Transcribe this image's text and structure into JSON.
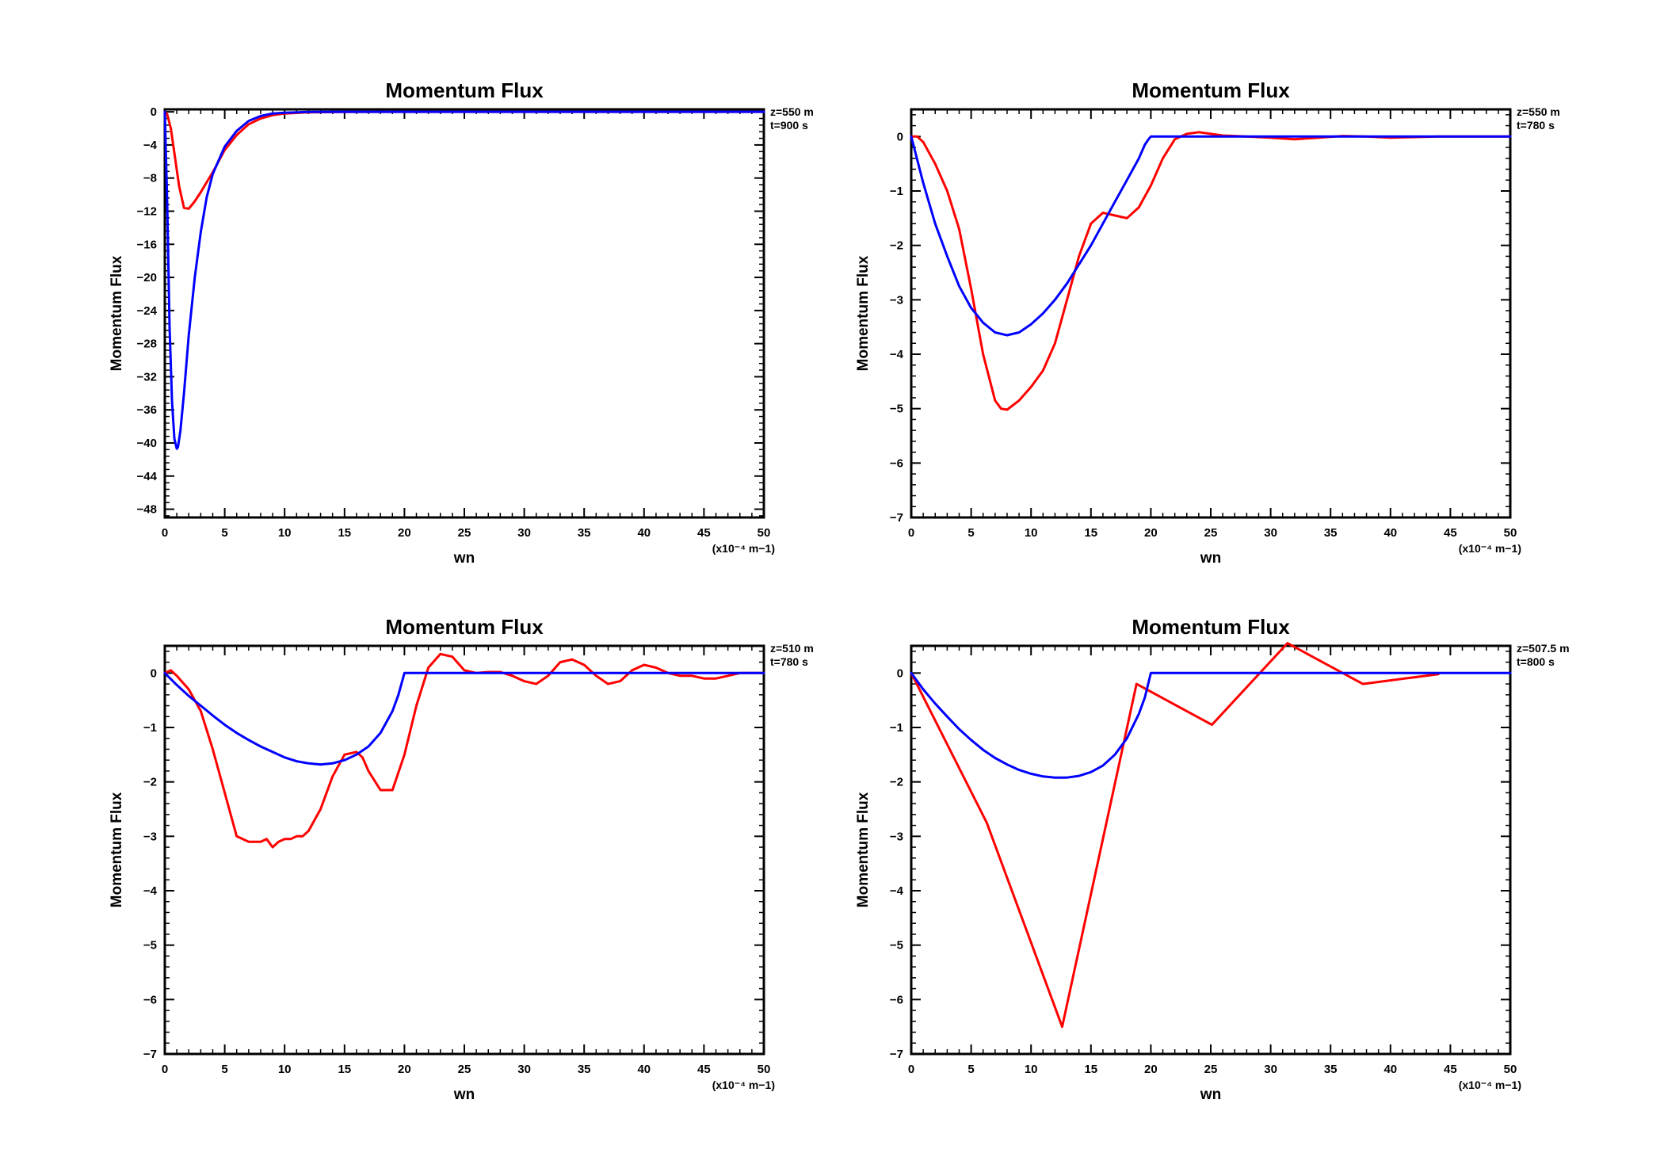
{
  "colors": {
    "model": "#ff0000",
    "theory": "#0000ff",
    "axis": "#000000"
  },
  "chart_data": [
    {
      "type": "line",
      "title": "Momentum Flux",
      "xlabel": "wn",
      "ylabel": "Momentum Flux",
      "x_scale_note": "(x10⁻⁴ m−1)",
      "annotations": [
        "z=550 m",
        "t=900 s"
      ],
      "xlim": [
        0,
        50
      ],
      "ylim": [
        -49,
        0.3
      ],
      "xticks": [
        0,
        5,
        10,
        15,
        20,
        25,
        30,
        35,
        40,
        45,
        50
      ],
      "yticks": [
        0,
        -4,
        -8,
        -12,
        -16,
        -20,
        -24,
        -28,
        -32,
        -36,
        -40,
        -44,
        -48
      ],
      "grid": false,
      "series": [
        {
          "color": "#ff0000",
          "x": [
            0,
            0.2,
            0.5,
            0.8,
            1.2,
            1.6,
            2.0,
            2.5,
            3.0,
            3.5,
            4.0,
            5.0,
            6.0,
            7.0,
            8.0,
            9.0,
            10.0,
            12.0,
            15.0,
            20.0,
            30.0,
            40.0,
            50.0
          ],
          "y": [
            0,
            -0.3,
            -2,
            -5,
            -9,
            -11.6,
            -11.7,
            -10.8,
            -9.7,
            -8.5,
            -7.3,
            -4.6,
            -2.8,
            -1.5,
            -0.8,
            -0.4,
            -0.2,
            -0.05,
            -0.01,
            0,
            0,
            0,
            0
          ]
        },
        {
          "color": "#0000ff",
          "x": [
            0,
            0.2,
            0.4,
            0.6,
            0.8,
            1.0,
            1.1,
            1.3,
            1.6,
            2.0,
            2.5,
            3.0,
            3.5,
            4.0,
            5.0,
            6.0,
            7.0,
            8.0,
            9.0,
            10.0,
            12.0,
            15.0,
            20.0,
            30.0,
            40.0,
            50.0
          ],
          "y": [
            0,
            -11,
            -26,
            -35,
            -39.5,
            -40.7,
            -40.5,
            -38.5,
            -34,
            -27,
            -20,
            -14.5,
            -10.3,
            -7.5,
            -4.2,
            -2.3,
            -1.1,
            -0.5,
            -0.2,
            -0.1,
            -0.02,
            0,
            0,
            0,
            0,
            0
          ]
        }
      ]
    },
    {
      "type": "line",
      "title": "Momentum Flux",
      "xlabel": "wn",
      "ylabel": "Momentum Flux",
      "x_scale_note": "(x10⁻⁴ m−1)",
      "annotations": [
        "z=550 m",
        "t=780 s"
      ],
      "xlim": [
        0,
        50
      ],
      "ylim": [
        -7,
        0.5
      ],
      "xticks": [
        0,
        5,
        10,
        15,
        20,
        25,
        30,
        35,
        40,
        45,
        50
      ],
      "yticks": [
        0,
        -1,
        -2,
        -3,
        -4,
        -5,
        -6,
        -7
      ],
      "grid": false,
      "series": [
        {
          "color": "#ff0000",
          "x": [
            0,
            0.5,
            1,
            2,
            3,
            4,
            5,
            6,
            7,
            7.5,
            8,
            9,
            10,
            11,
            12,
            13,
            14,
            15,
            16,
            17,
            18,
            19,
            20,
            21,
            22,
            23,
            24,
            25,
            26,
            28,
            30,
            32,
            34,
            36,
            38,
            40,
            42,
            44,
            46,
            48,
            50
          ],
          "y": [
            0,
            0,
            -0.1,
            -0.5,
            -1.0,
            -1.7,
            -2.8,
            -4.0,
            -4.85,
            -5.0,
            -5.02,
            -4.85,
            -4.6,
            -4.3,
            -3.8,
            -3.0,
            -2.2,
            -1.6,
            -1.4,
            -1.45,
            -1.5,
            -1.3,
            -0.9,
            -0.4,
            -0.05,
            0.05,
            0.08,
            0.05,
            0.02,
            0.0,
            -0.02,
            -0.05,
            -0.02,
            0.01,
            0.0,
            -0.02,
            -0.01,
            0.0,
            0.0,
            0.0,
            0.0
          ]
        },
        {
          "color": "#0000ff",
          "x": [
            0,
            1,
            2,
            3,
            4,
            5,
            6,
            7,
            8,
            9,
            10,
            11,
            12,
            13,
            14,
            15,
            16,
            17,
            18,
            19,
            19.5,
            19.8,
            20,
            21,
            25,
            30,
            35,
            40,
            45,
            50
          ],
          "y": [
            0,
            -0.85,
            -1.6,
            -2.2,
            -2.75,
            -3.15,
            -3.42,
            -3.6,
            -3.65,
            -3.6,
            -3.45,
            -3.25,
            -3.0,
            -2.7,
            -2.35,
            -2.0,
            -1.6,
            -1.2,
            -0.8,
            -0.4,
            -0.15,
            -0.05,
            0,
            0,
            0,
            0,
            0,
            0,
            0,
            0
          ]
        }
      ]
    },
    {
      "type": "line",
      "title": "Momentum Flux",
      "xlabel": "wn",
      "ylabel": "Momentum Flux",
      "x_scale_note": "(x10⁻⁴ m−1)",
      "annotations": [
        "z=510 m",
        "t=780 s"
      ],
      "xlim": [
        0,
        50
      ],
      "ylim": [
        -7,
        0.5
      ],
      "xticks": [
        0,
        5,
        10,
        15,
        20,
        25,
        30,
        35,
        40,
        45,
        50
      ],
      "yticks": [
        0,
        -1,
        -2,
        -3,
        -4,
        -5,
        -6,
        -7
      ],
      "grid": false,
      "series": [
        {
          "color": "#ff0000",
          "x": [
            0,
            0.5,
            1,
            2,
            3,
            4,
            5,
            6,
            7,
            8,
            8.5,
            9,
            9.5,
            10,
            10.5,
            11,
            11.5,
            12,
            13,
            14,
            15,
            16,
            16.5,
            17,
            18,
            19,
            20,
            21,
            22,
            23,
            24,
            25,
            26,
            27,
            28,
            29,
            30,
            31,
            32,
            33,
            34,
            35,
            36,
            37,
            38,
            39,
            40,
            41,
            42,
            43,
            44,
            45,
            46,
            47,
            48,
            49,
            50
          ],
          "y": [
            0,
            0.05,
            -0.05,
            -0.3,
            -0.7,
            -1.4,
            -2.2,
            -3.0,
            -3.1,
            -3.1,
            -3.05,
            -3.2,
            -3.1,
            -3.05,
            -3.05,
            -3.0,
            -3.0,
            -2.9,
            -2.5,
            -1.9,
            -1.5,
            -1.45,
            -1.55,
            -1.8,
            -2.15,
            -2.15,
            -1.5,
            -0.6,
            0.1,
            0.35,
            0.3,
            0.05,
            0.0,
            0.02,
            0.02,
            -0.05,
            -0.15,
            -0.2,
            -0.05,
            0.2,
            0.25,
            0.15,
            -0.05,
            -0.2,
            -0.15,
            0.05,
            0.15,
            0.1,
            0.0,
            -0.05,
            -0.05,
            -0.1,
            -0.1,
            -0.05,
            0.0,
            0.0,
            0.0
          ]
        },
        {
          "color": "#0000ff",
          "x": [
            0,
            1,
            2,
            3,
            4,
            5,
            6,
            7,
            8,
            9,
            10,
            11,
            12,
            13,
            14,
            15,
            16,
            17,
            18,
            19,
            19.5,
            20,
            21,
            25,
            30,
            35,
            40,
            45,
            50
          ],
          "y": [
            0,
            -0.22,
            -0.42,
            -0.6,
            -0.78,
            -0.95,
            -1.1,
            -1.23,
            -1.35,
            -1.45,
            -1.55,
            -1.62,
            -1.66,
            -1.68,
            -1.66,
            -1.6,
            -1.5,
            -1.35,
            -1.1,
            -0.7,
            -0.4,
            0,
            0,
            0,
            0,
            0,
            0,
            0,
            0
          ]
        }
      ]
    },
    {
      "type": "line",
      "title": "Momentum Flux",
      "xlabel": "wn",
      "ylabel": "Momentum Flux",
      "x_scale_note": "(x10⁻⁴ m−1)",
      "annotations": [
        "z=507.5 m",
        "t=800 s"
      ],
      "xlim": [
        0,
        50
      ],
      "ylim": [
        -7,
        0.5
      ],
      "xticks": [
        0,
        5,
        10,
        15,
        20,
        25,
        30,
        35,
        40,
        45,
        50
      ],
      "yticks": [
        0,
        -1,
        -2,
        -3,
        -4,
        -5,
        -6,
        -7
      ],
      "grid": false,
      "series": [
        {
          "color": "#ff0000",
          "x": [
            0,
            6.3,
            12.6,
            18.8,
            25.1,
            31.4,
            37.7,
            44.0
          ],
          "y": [
            0,
            -2.75,
            -6.5,
            -0.2,
            -0.95,
            0.55,
            -0.2,
            -0.02
          ]
        },
        {
          "color": "#0000ff",
          "x": [
            0,
            1,
            2,
            3,
            4,
            5,
            6,
            7,
            8,
            9,
            10,
            11,
            12,
            13,
            14,
            15,
            16,
            17,
            18,
            19,
            19.5,
            20,
            21,
            25,
            30,
            35,
            40,
            45,
            50
          ],
          "y": [
            0,
            -0.3,
            -0.56,
            -0.8,
            -1.03,
            -1.23,
            -1.41,
            -1.56,
            -1.68,
            -1.78,
            -1.85,
            -1.9,
            -1.92,
            -1.92,
            -1.89,
            -1.82,
            -1.7,
            -1.5,
            -1.2,
            -0.75,
            -0.45,
            0,
            0,
            0,
            0,
            0,
            0,
            0,
            0
          ]
        }
      ]
    }
  ]
}
